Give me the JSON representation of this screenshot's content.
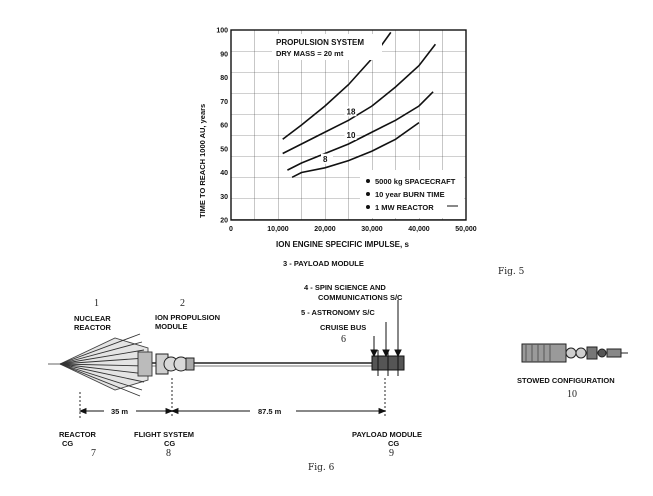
{
  "chart_data": {
    "type": "line",
    "title": "PROPULSION SYSTEM",
    "subtitle": "DRY MASS = 20 mt",
    "xlabel": "ION ENGINE SPECIFIC IMPULSE, s",
    "ylabel": "TIME TO REACH 1000 AU, years",
    "xlim": [
      0,
      50000
    ],
    "ylim": [
      20,
      100
    ],
    "x_ticks": [
      "0",
      "10,000",
      "20,000",
      "30,000",
      "40,000",
      "50,000"
    ],
    "y_ticks": [
      "20",
      "30",
      "40",
      "50",
      "60",
      "70",
      "80",
      "90",
      "100"
    ],
    "grid": true,
    "series": [
      {
        "name": "",
        "x": [
          11000,
          15000,
          20000,
          25000,
          30000,
          34000
        ],
        "y": [
          54,
          60,
          68,
          77,
          88,
          99
        ]
      },
      {
        "name": "18",
        "x": [
          11000,
          15000,
          20000,
          25000,
          30000,
          35000,
          40000,
          43500
        ],
        "y": [
          48,
          52,
          57,
          62,
          68,
          76,
          85,
          94
        ]
      },
      {
        "name": "10",
        "x": [
          12000,
          15000,
          20000,
          25000,
          30000,
          35000,
          40000,
          43000
        ],
        "y": [
          41,
          44,
          48,
          52,
          57,
          62,
          68,
          74
        ]
      },
      {
        "name": "8",
        "x": [
          13000,
          15000,
          20000,
          25000,
          30000,
          35000,
          40000
        ],
        "y": [
          38,
          40,
          42,
          45,
          49,
          54,
          61
        ]
      }
    ],
    "legend": [
      "5000 kg SPACECRAFT",
      "10 year BURN TIME",
      "1 MW REACTOR"
    ]
  },
  "figure5_caption": "Fig. 5",
  "figure6_caption": "Fig. 6",
  "diagram": {
    "labels": {
      "payload_module_top": "3 - PAYLOAD MODULE",
      "spin_science": "4 - SPIN SCIENCE AND",
      "spin_science_2": "COMMUNICATIONS S/C",
      "astronomy": "5 - ASTRONOMY S/C",
      "cruise_bus": "CRUISE BUS",
      "cruise_bus_num": "6",
      "nuclear_num": "1",
      "nuclear_1": "NUCLEAR",
      "nuclear_2": "REACTOR",
      "ion_num": "2",
      "ion_1": "ION PROPULSION",
      "ion_2": "MODULE",
      "dim_35": "35 m",
      "dim_87": "87.5 m",
      "reactor_cg_1": "REACTOR",
      "reactor_cg_2": "CG",
      "reactor_cg_num": "7",
      "flight_cg_1": "FLIGHT SYSTEM",
      "flight_cg_2": "CG",
      "flight_cg_num": "8",
      "payload_cg_1": "PAYLOAD MODULE",
      "payload_cg_2": "CG",
      "payload_cg_num": "9",
      "stowed": "STOWED CONFIGURATION",
      "stowed_num": "10"
    }
  }
}
